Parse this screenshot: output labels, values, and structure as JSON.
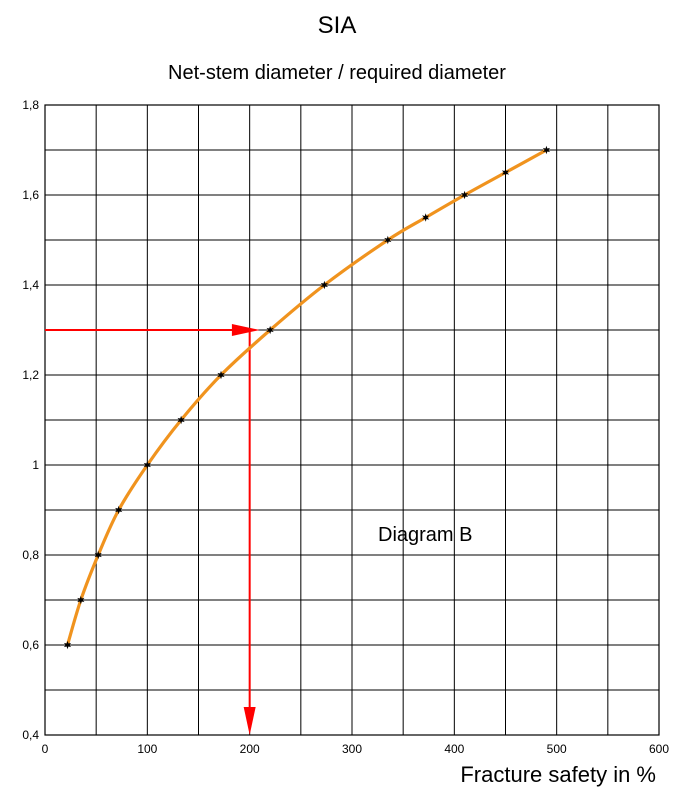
{
  "chart_data": {
    "type": "line",
    "title": "SIA",
    "subtitle": "Net-stem diameter / required diameter",
    "xlabel": "Fracture safety  in %",
    "ylabel": "",
    "xlim": [
      0,
      600
    ],
    "ylim": [
      0.4,
      1.8
    ],
    "x_ticks": [
      "0",
      "100",
      "200",
      "300",
      "400",
      "500",
      "600"
    ],
    "y_ticks": [
      "0,4",
      "0,6",
      "0,8",
      "1",
      "1,2",
      "1,4",
      "1,6",
      "1,8"
    ],
    "grid": true,
    "series": [
      {
        "color": "#f0931e",
        "marker_color": "#000000",
        "points": [
          {
            "x": 22,
            "y": 0.6
          },
          {
            "x": 35,
            "y": 0.7
          },
          {
            "x": 52,
            "y": 0.8
          },
          {
            "x": 72,
            "y": 0.9
          },
          {
            "x": 100,
            "y": 1.0
          },
          {
            "x": 133,
            "y": 1.1
          },
          {
            "x": 172,
            "y": 1.2
          },
          {
            "x": 220,
            "y": 1.3
          },
          {
            "x": 273,
            "y": 1.4
          },
          {
            "x": 335,
            "y": 1.5
          },
          {
            "x": 372,
            "y": 1.55
          },
          {
            "x": 410,
            "y": 1.6
          },
          {
            "x": 450,
            "y": 1.65
          },
          {
            "x": 490,
            "y": 1.7
          }
        ]
      }
    ],
    "annotations": [
      {
        "type": "arrow",
        "color": "#ff0000",
        "from": [
          0,
          1.3
        ],
        "to": [
          210,
          1.3
        ]
      },
      {
        "type": "arrow",
        "color": "#ff0000",
        "from": [
          200,
          1.3
        ],
        "to": [
          200,
          0.4
        ]
      },
      {
        "type": "text",
        "text": "Diagram B"
      }
    ]
  }
}
